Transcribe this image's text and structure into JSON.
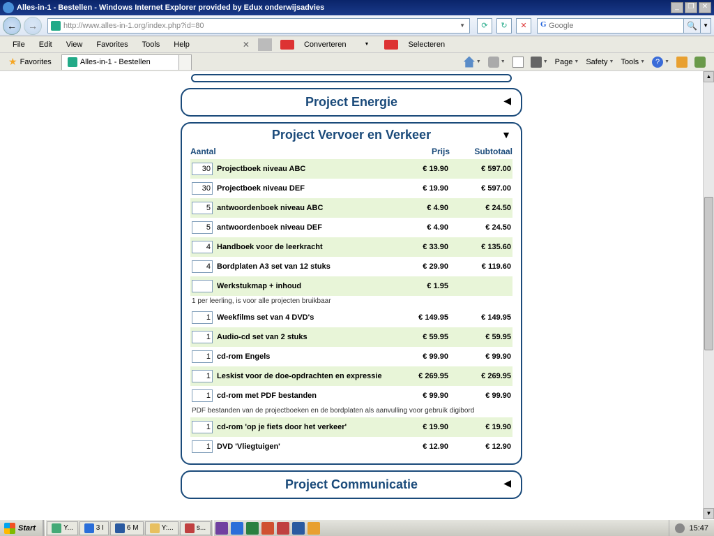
{
  "window": {
    "title": "Alles-in-1 - Bestellen - Windows Internet Explorer provided by Edux onderwijsadvies"
  },
  "address": {
    "url": "http://www.alles-in-1.org/index.php?id=80"
  },
  "search": {
    "placeholder": "Google"
  },
  "menu": {
    "file": "File",
    "edit": "Edit",
    "view": "View",
    "favorites": "Favorites",
    "tools": "Tools",
    "help": "Help",
    "converteren": "Converteren",
    "selecteren": "Selecteren"
  },
  "tabs": {
    "favorites": "Favorites",
    "page_title": "Alles-in-1 - Bestellen"
  },
  "cmd": {
    "page": "Page",
    "safety": "Safety",
    "tools": "Tools"
  },
  "panels": {
    "energie": {
      "title": "Project Energie"
    },
    "vervoer": {
      "title": "Project Vervoer en Verkeer",
      "headers": {
        "aantal": "Aantal",
        "prijs": "Prijs",
        "subtotaal": "Subtotaal"
      },
      "rows": [
        {
          "qty": "30",
          "name": "Projectboek niveau ABC",
          "prijs": "€ 19.90",
          "sub": "€ 597.00",
          "alt": true
        },
        {
          "qty": "30",
          "name": "Projectboek niveau DEF",
          "prijs": "€ 19.90",
          "sub": "€ 597.00",
          "alt": false
        },
        {
          "qty": "5",
          "name": "antwoordenboek niveau ABC",
          "prijs": "€ 4.90",
          "sub": "€ 24.50",
          "alt": true
        },
        {
          "qty": "5",
          "name": "antwoordenboek niveau DEF",
          "prijs": "€ 4.90",
          "sub": "€ 24.50",
          "alt": false
        },
        {
          "qty": "4",
          "name": "Handboek voor de leerkracht",
          "prijs": "€ 33.90",
          "sub": "€ 135.60",
          "alt": true
        },
        {
          "qty": "4",
          "name": "Bordplaten A3 set van 12 stuks",
          "prijs": "€ 29.90",
          "sub": "€ 119.60",
          "alt": false
        },
        {
          "qty": "",
          "name": "Werkstukmap + inhoud",
          "prijs": "€ 1.95",
          "sub": "",
          "alt": true,
          "note": "1 per leerling, is voor alle projecten bruikbaar"
        },
        {
          "qty": "1",
          "name": "Weekfilms set van 4 DVD's",
          "prijs": "€ 149.95",
          "sub": "€ 149.95",
          "alt": false
        },
        {
          "qty": "1",
          "name": "Audio-cd set van 2 stuks",
          "prijs": "€ 59.95",
          "sub": "€ 59.95",
          "alt": true
        },
        {
          "qty": "1",
          "name": "cd-rom Engels",
          "prijs": "€ 99.90",
          "sub": "€ 99.90",
          "alt": false
        },
        {
          "qty": "1",
          "name": "Leskist voor de doe-opdrachten en expressie",
          "prijs": "€ 269.95",
          "sub": "€ 269.95",
          "alt": true
        },
        {
          "qty": "1",
          "name": "cd-rom met PDF bestanden",
          "prijs": "€ 99.90",
          "sub": "€ 99.90",
          "alt": false,
          "note": "PDF bestanden van de projectboeken en de bordplaten als aanvulling voor gebruik digibord"
        },
        {
          "qty": "1",
          "name": "cd-rom 'op je fiets door het verkeer'",
          "prijs": "€ 19.90",
          "sub": "€ 19.90",
          "alt": true
        },
        {
          "qty": "1",
          "name": "DVD 'Vliegtuigen'",
          "prijs": "€ 12.90",
          "sub": "€ 12.90",
          "alt": false
        }
      ]
    },
    "communicatie": {
      "title": "Project Communicatie"
    }
  },
  "taskbar": {
    "start": "Start",
    "items": [
      {
        "label": "Y...",
        "color": "#4a7"
      },
      {
        "label": "3 I",
        "color": "#2a6ed9"
      },
      {
        "label": "6 M",
        "color": "#2a5aa0"
      },
      {
        "label": "Y:...",
        "color": "#e8c060"
      },
      {
        "label": "s...",
        "color": "#c04040"
      }
    ],
    "quick": [
      {
        "color": "#7040a0"
      },
      {
        "color": "#2a6ed9"
      },
      {
        "color": "#2a8040"
      },
      {
        "color": "#d05030"
      },
      {
        "color": "#c04040"
      },
      {
        "color": "#2a5aa0"
      },
      {
        "color": "#e8a030"
      }
    ],
    "clock": "15:47"
  },
  "colors": {
    "panel_border": "#1a4a7a",
    "alt_row": "#e8f5d8"
  }
}
